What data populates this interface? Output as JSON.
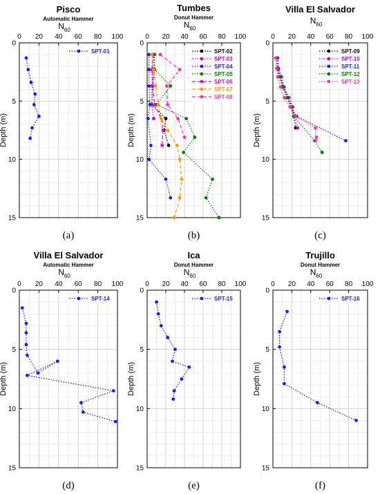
{
  "figure": {
    "xlabel_main": "N",
    "xlabel_sub": "60",
    "ylabel": "Depth (m)"
  },
  "chart_data": [
    {
      "type": "line",
      "title": "Pisco",
      "subtitle": "Automatic Hammer",
      "caption": "(a)",
      "xlim": [
        0,
        100
      ],
      "ylim": [
        0,
        15
      ],
      "xticks": [
        "0",
        "20",
        "40",
        "60",
        "80",
        "100"
      ],
      "yticks": [
        "0",
        "5",
        "10",
        "15"
      ],
      "grid": true,
      "legend_position": "top-right",
      "series": [
        {
          "name": "SPT-01",
          "color": "#1a1aff",
          "dash": "dot",
          "x": [
            7,
            9,
            12,
            16,
            15,
            20,
            13,
            11
          ],
          "y": [
            1.3,
            2.3,
            3.4,
            4.4,
            5.3,
            6.3,
            7.3,
            8.2
          ]
        }
      ]
    },
    {
      "type": "line",
      "title": "Tumbes",
      "subtitle": "Donut Hammer",
      "caption": "(b)",
      "xlim": [
        0,
        100
      ],
      "ylim": [
        0,
        15
      ],
      "xticks": [
        "0",
        "20",
        "40",
        "60",
        "80",
        "100"
      ],
      "yticks": [
        "0",
        "5",
        "10",
        "15"
      ],
      "grid": true,
      "legend_position": "top-right",
      "series": [
        {
          "name": "SPT-02",
          "color": "#000000",
          "dash": "dot",
          "x": [
            7,
            8,
            6,
            5,
            20,
            18,
            23
          ],
          "y": [
            1.0,
            2.3,
            3.7,
            5.3,
            6.5,
            7.5,
            8.8
          ]
        },
        {
          "name": "SPT-03",
          "color": "#cc00cc",
          "dash": "dot",
          "x": [
            6,
            6,
            5,
            5,
            7
          ],
          "y": [
            1.0,
            2.3,
            3.7,
            5.3,
            6.5
          ]
        },
        {
          "name": "SPT-04",
          "color": "#1a1aff",
          "dash": "dot",
          "x": [
            2,
            2,
            2,
            3,
            1,
            4,
            2,
            20,
            25
          ],
          "y": [
            1.0,
            2.3,
            3.7,
            5.3,
            6.5,
            8.8,
            10.0,
            11.7,
            13.3
          ]
        },
        {
          "name": "SPT-05",
          "color": "#008000",
          "dash": "dot",
          "x": [
            8,
            8,
            25,
            10,
            42,
            51,
            39,
            70,
            63,
            77
          ],
          "y": [
            1.0,
            2.3,
            3.7,
            5.3,
            6.5,
            8.1,
            9.4,
            11.7,
            13.3,
            15.0
          ]
        },
        {
          "name": "SPT-06",
          "color": "#e600e6",
          "dash": "dash",
          "x": [
            6,
            5,
            6,
            8,
            15,
            17,
            16
          ],
          "y": [
            1.0,
            2.3,
            3.7,
            5.3,
            6.5,
            7.5,
            8.8
          ]
        },
        {
          "name": "SPT-07",
          "color": "#ff9900",
          "dash": "dash",
          "x": [
            5,
            7,
            9,
            12,
            15,
            22,
            32,
            35,
            37,
            35,
            29
          ],
          "y": [
            1.0,
            2.3,
            3.7,
            5.3,
            6.5,
            7.5,
            8.8,
            10.0,
            11.7,
            13.3,
            15.0
          ]
        },
        {
          "name": "SPT-08",
          "color": "#ff3399",
          "dash": "dash",
          "x": [
            14,
            35,
            21,
            22,
            33,
            40
          ],
          "y": [
            1.0,
            2.3,
            3.7,
            5.3,
            6.5,
            8.1
          ]
        }
      ]
    },
    {
      "type": "line",
      "title": "Villa El Salvador",
      "subtitle": "",
      "caption": "(c)",
      "xlim": [
        0,
        100
      ],
      "ylim": [
        0,
        15
      ],
      "xticks": [
        "0",
        "20",
        "40",
        "60",
        "80",
        "100"
      ],
      "yticks": [
        "0",
        "5",
        "10",
        "15"
      ],
      "grid": true,
      "legend_position": "top-right",
      "series": [
        {
          "name": "SPT-09",
          "color": "#000000",
          "dash": "dot",
          "x": [
            5,
            6,
            8,
            11,
            16,
            20,
            22,
            24
          ],
          "y": [
            1.3,
            2.2,
            2.9,
            3.8,
            4.7,
            5.5,
            6.3,
            7.3
          ]
        },
        {
          "name": "SPT-10",
          "color": "#cc00cc",
          "dash": "dot",
          "x": [
            5,
            6,
            9,
            12,
            17,
            21,
            23,
            26
          ],
          "y": [
            1.3,
            2.2,
            2.9,
            3.8,
            4.7,
            5.5,
            6.3,
            7.3
          ]
        },
        {
          "name": "SPT-11",
          "color": "#1a1aff",
          "dash": "dot",
          "x": [
            4,
            5,
            7,
            10,
            15,
            19,
            25,
            77
          ],
          "y": [
            1.3,
            2.2,
            2.9,
            3.8,
            4.7,
            5.5,
            6.3,
            8.4
          ]
        },
        {
          "name": "SPT-12",
          "color": "#008000",
          "dash": "dot",
          "x": [
            3,
            4,
            7,
            11,
            15,
            19,
            22,
            44,
            52
          ],
          "y": [
            1.3,
            2.2,
            2.9,
            3.8,
            4.7,
            5.5,
            6.3,
            8.4,
            9.4
          ]
        },
        {
          "name": "SPT-13",
          "color": "#ff3399",
          "dash": "dot",
          "x": [
            3,
            4,
            5,
            8,
            12,
            18,
            24,
            45,
            45,
            46
          ],
          "y": [
            1.3,
            2.2,
            2.9,
            3.8,
            4.7,
            5.5,
            6.3,
            7.3,
            8.4,
            8.1
          ]
        }
      ]
    },
    {
      "type": "line",
      "title": "Villa El Salvador",
      "subtitle": "Automatic Hammer",
      "caption": "(d)",
      "xlim": [
        0,
        100
      ],
      "ylim": [
        0,
        15
      ],
      "xticks": [
        "0",
        "20",
        "40",
        "60",
        "80",
        "100"
      ],
      "yticks": [
        "0",
        "5",
        "10",
        "15"
      ],
      "grid": true,
      "legend_position": "top-right",
      "series": [
        {
          "name": "SPT-14",
          "color": "#1a1aff",
          "dash": "dot",
          "x": [
            3,
            7,
            7,
            7,
            8,
            19,
            39,
            8,
            96,
            63,
            65,
            98
          ],
          "y": [
            1.5,
            2.8,
            3.6,
            4.6,
            5.5,
            7.0,
            6.0,
            7.2,
            8.5,
            9.5,
            10.3,
            11.1
          ]
        }
      ]
    },
    {
      "type": "line",
      "title": "Ica",
      "subtitle": "Donut Hammer",
      "caption": "(e)",
      "xlim": [
        0,
        100
      ],
      "ylim": [
        0,
        15
      ],
      "xticks": [
        "0",
        "20",
        "40",
        "60",
        "80",
        "100"
      ],
      "yticks": [
        "0",
        "5",
        "10",
        "15"
      ],
      "grid": true,
      "legend_position": "top-right",
      "series": [
        {
          "name": "SPT-15",
          "color": "#1a1aff",
          "dash": "dot",
          "x": [
            10,
            12,
            15,
            22,
            30,
            27,
            45,
            37,
            29,
            28
          ],
          "y": [
            1.0,
            2.0,
            3.0,
            4.0,
            5.0,
            6.0,
            6.5,
            7.5,
            8.5,
            9.2
          ]
        }
      ]
    },
    {
      "type": "line",
      "title": "Trujillo",
      "subtitle": "Donut Hammer",
      "caption": "(f)",
      "xlim": [
        0,
        100
      ],
      "ylim": [
        0,
        15
      ],
      "xticks": [
        "0",
        "20",
        "40",
        "60",
        "80",
        "100"
      ],
      "yticks": [
        "0",
        "5",
        "10",
        "15"
      ],
      "grid": true,
      "legend_position": "top-right",
      "series": [
        {
          "name": "SPT-16",
          "color": "#1a1aff",
          "dash": "dot",
          "x": [
            15,
            7,
            7,
            12,
            12,
            47,
            88
          ],
          "y": [
            1.8,
            3.5,
            4.8,
            6.5,
            7.9,
            9.5,
            11.0
          ]
        }
      ]
    }
  ]
}
